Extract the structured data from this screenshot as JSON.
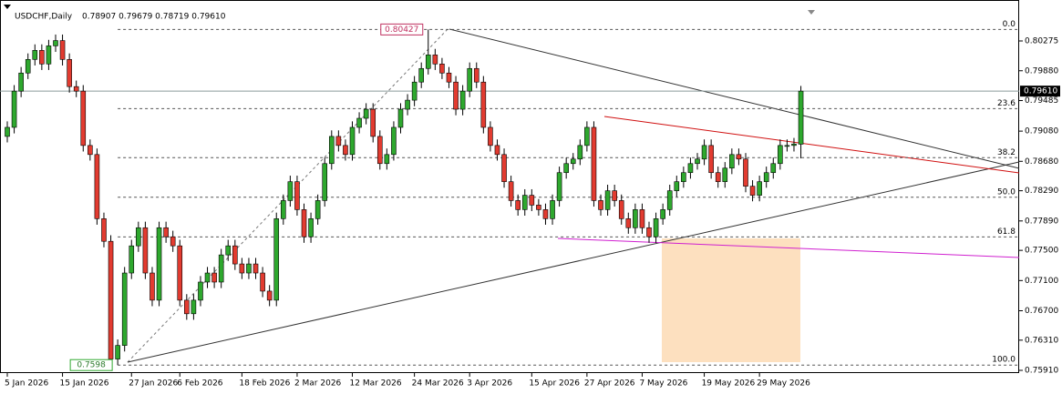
{
  "chart_data": {
    "type": "candlestick",
    "symbol": "USDCHF,Daily",
    "header_prices": "0.78907 0.79679 0.78719 0.79610",
    "bull_color": "#2ea82e",
    "bear_color": "#e23b30",
    "ylim": [
      0.75874,
      0.80697
    ],
    "yticks": [
      {
        "value": 0.80275,
        "label": "0.80275"
      },
      {
        "value": 0.7988,
        "label": "0.79880"
      },
      {
        "value": 0.79485,
        "label": "0.79485"
      },
      {
        "value": 0.7908,
        "label": "0.79080"
      },
      {
        "value": 0.7868,
        "label": "0.78680"
      },
      {
        "value": 0.7829,
        "label": "0.78290"
      },
      {
        "value": 0.7789,
        "label": "0.77890"
      },
      {
        "value": 0.775,
        "label": "0.77500"
      },
      {
        "value": 0.771,
        "label": "0.77100"
      },
      {
        "value": 0.767,
        "label": "0.76700"
      },
      {
        "value": 0.7631,
        "label": "0.76310"
      },
      {
        "value": 0.7591,
        "label": "0.75910"
      }
    ],
    "xticks": [
      {
        "value": 0,
        "label": "5 Jan 2026"
      },
      {
        "value": 8,
        "label": "15 Jan 2026"
      },
      {
        "value": 18,
        "label": "27 Jan 2026"
      },
      {
        "value": 25,
        "label": "6 Feb 2026"
      },
      {
        "value": 34,
        "label": "18 Feb 2026"
      },
      {
        "value": 42,
        "label": "2 Mar 2026"
      },
      {
        "value": 50,
        "label": "12 Mar 2026"
      },
      {
        "value": 59,
        "label": "24 Mar 2026"
      },
      {
        "value": 67,
        "label": "3 Apr 2026"
      },
      {
        "value": 76,
        "label": "15 Apr 2026"
      },
      {
        "value": 84,
        "label": "27 Apr 2026"
      },
      {
        "value": 92,
        "label": "7 May 2026"
      },
      {
        "value": 101,
        "label": "19 May 2026"
      },
      {
        "value": 109,
        "label": "29 May 2026"
      }
    ],
    "current_price": {
      "value": 0.7961,
      "label": "0.79610"
    },
    "fib_levels": [
      {
        "value": 0,
        "label": "0.0"
      },
      23.6,
      38.2,
      {
        "value": 50,
        "label": "50.0"
      },
      61.8,
      {
        "value": 100,
        "label": "100.0"
      }
    ],
    "open": [
      0.7901,
      0.7913,
      0.7961,
      0.7985,
      0.8003,
      0.8015,
      0.7997,
      0.8021,
      0.8028,
      0.8003,
      0.7967,
      0.7961,
      0.7889,
      0.7877,
      0.7792,
      0.7762,
      0.7606,
      0.7624,
      0.772,
      0.7756,
      0.778,
      0.772,
      0.7684,
      0.778,
      0.7768,
      0.7756,
      0.7684,
      0.7666,
      0.7684,
      0.7708,
      0.772,
      0.7708,
      0.7744,
      0.7756,
      0.7732,
      0.772,
      0.7732,
      0.772,
      0.7696,
      0.7684,
      0.7792,
      0.7816,
      0.7841,
      0.7804,
      0.7768,
      0.7792,
      0.7816,
      0.7865,
      0.7901,
      0.7889,
      0.7877,
      0.7913,
      0.7925,
      0.7937,
      0.7901,
      0.7865,
      0.7877,
      0.7913,
      0.7937,
      0.7949,
      0.7973,
      0.7991,
      0.8009,
      0.7997,
      0.7985,
      0.7973,
      0.7937,
      0.7961,
      0.7991,
      0.7973,
      0.7913,
      0.7889,
      0.7877,
      0.7841,
      0.7816,
      0.7804,
      0.7823,
      0.781,
      0.7804,
      0.7792,
      0.7816,
      0.7853,
      0.7865,
      0.7871,
      0.7889,
      0.7913,
      0.7816,
      0.7804,
      0.7829,
      0.7816,
      0.7792,
      0.778,
      0.7804,
      0.778,
      0.7768,
      0.7792,
      0.7804,
      0.7829,
      0.7841,
      0.7853,
      0.7865,
      0.7871,
      0.7889,
      0.7853,
      0.7841,
      0.7859,
      0.7877,
      0.7871,
      0.7835,
      0.7823,
      0.7841,
      0.7853,
      0.7865,
      0.7889,
      0.7889,
      0.78907
    ],
    "high": [
      0.7921,
      0.7969,
      0.7993,
      0.8011,
      0.8023,
      0.8023,
      0.8029,
      0.8036,
      0.8036,
      0.8011,
      0.7975,
      0.7969,
      0.7897,
      0.7885,
      0.78,
      0.777,
      0.7632,
      0.7728,
      0.7764,
      0.7788,
      0.7788,
      0.7728,
      0.7788,
      0.7788,
      0.7776,
      0.7764,
      0.7692,
      0.7692,
      0.7716,
      0.7728,
      0.7728,
      0.7752,
      0.7764,
      0.7764,
      0.774,
      0.774,
      0.774,
      0.7728,
      0.7704,
      0.78,
      0.7824,
      0.7849,
      0.7849,
      0.7812,
      0.78,
      0.7824,
      0.7873,
      0.7909,
      0.7909,
      0.7897,
      0.7921,
      0.7933,
      0.7945,
      0.7945,
      0.7909,
      0.7885,
      0.7921,
      0.7945,
      0.7957,
      0.7981,
      0.7999,
      0.80427,
      0.8017,
      0.8005,
      0.7993,
      0.7981,
      0.7969,
      0.7999,
      0.7999,
      0.7981,
      0.7921,
      0.7897,
      0.7885,
      0.7849,
      0.7824,
      0.7831,
      0.7831,
      0.7818,
      0.7812,
      0.7824,
      0.7861,
      0.7873,
      0.7879,
      0.7897,
      0.7921,
      0.7921,
      0.7824,
      0.7837,
      0.7837,
      0.7824,
      0.78,
      0.7812,
      0.7812,
      0.7788,
      0.78,
      0.7812,
      0.7837,
      0.7849,
      0.7861,
      0.7873,
      0.7879,
      0.7897,
      0.7897,
      0.7861,
      0.7867,
      0.7885,
      0.7885,
      0.7879,
      0.7843,
      0.7849,
      0.7861,
      0.7873,
      0.7897,
      0.7897,
      0.7899,
      0.79679
    ],
    "low": [
      0.7893,
      0.7905,
      0.7953,
      0.7977,
      0.7995,
      0.7989,
      0.7989,
      0.8013,
      0.7995,
      0.7959,
      0.7953,
      0.7881,
      0.7869,
      0.7784,
      0.7754,
      0.75994,
      0.7598,
      0.7616,
      0.7712,
      0.7748,
      0.7712,
      0.7676,
      0.7676,
      0.776,
      0.7748,
      0.7676,
      0.7658,
      0.7658,
      0.7676,
      0.77,
      0.77,
      0.77,
      0.7736,
      0.7724,
      0.7712,
      0.7712,
      0.7712,
      0.7688,
      0.7676,
      0.7676,
      0.7784,
      0.7808,
      0.7796,
      0.776,
      0.776,
      0.7784,
      0.7808,
      0.7857,
      0.7881,
      0.7869,
      0.7869,
      0.7905,
      0.7917,
      0.7893,
      0.7857,
      0.7857,
      0.7869,
      0.7905,
      0.7929,
      0.7941,
      0.7965,
      0.7983,
      0.7989,
      0.7977,
      0.7965,
      0.7929,
      0.7929,
      0.7953,
      0.7965,
      0.7905,
      0.7881,
      0.7869,
      0.7833,
      0.7808,
      0.7796,
      0.7796,
      0.7802,
      0.7796,
      0.7784,
      0.7784,
      0.7808,
      0.7845,
      0.7857,
      0.7863,
      0.7881,
      0.7808,
      0.7796,
      0.7796,
      0.7808,
      0.7784,
      0.7772,
      0.7772,
      0.7772,
      0.776,
      0.776,
      0.7784,
      0.7796,
      0.7821,
      0.7833,
      0.7845,
      0.7857,
      0.7863,
      0.7845,
      0.7833,
      0.7833,
      0.7851,
      0.7863,
      0.7827,
      0.7815,
      0.7815,
      0.7833,
      0.7845,
      0.7857,
      0.7881,
      0.7881,
      0.78719
    ],
    "close": [
      0.7913,
      0.7961,
      0.7985,
      0.8003,
      0.8015,
      0.7997,
      0.8021,
      0.8028,
      0.8003,
      0.7967,
      0.7961,
      0.7889,
      0.7877,
      0.7792,
      0.7762,
      0.7606,
      0.7624,
      0.772,
      0.7756,
      0.778,
      0.772,
      0.7684,
      0.778,
      0.7768,
      0.7756,
      0.7684,
      0.7666,
      0.7684,
      0.7708,
      0.772,
      0.7708,
      0.7744,
      0.7756,
      0.7732,
      0.772,
      0.7732,
      0.772,
      0.7696,
      0.7684,
      0.7792,
      0.7816,
      0.7841,
      0.7804,
      0.7768,
      0.7792,
      0.7816,
      0.7865,
      0.7901,
      0.7889,
      0.7877,
      0.7913,
      0.7925,
      0.7937,
      0.7901,
      0.7865,
      0.7877,
      0.7913,
      0.7937,
      0.7949,
      0.7973,
      0.7991,
      0.8009,
      0.7997,
      0.7985,
      0.7973,
      0.7937,
      0.7961,
      0.7991,
      0.7973,
      0.7913,
      0.7889,
      0.7877,
      0.7841,
      0.7816,
      0.7804,
      0.7823,
      0.781,
      0.7804,
      0.7792,
      0.7816,
      0.7853,
      0.7865,
      0.7871,
      0.7889,
      0.7913,
      0.7816,
      0.7804,
      0.7829,
      0.7816,
      0.7792,
      0.778,
      0.7804,
      0.778,
      0.7768,
      0.7792,
      0.7804,
      0.7829,
      0.7841,
      0.7853,
      0.7865,
      0.7871,
      0.7889,
      0.7853,
      0.7841,
      0.7859,
      0.7877,
      0.7871,
      0.7835,
      0.7823,
      0.7841,
      0.7853,
      0.7865,
      0.7889,
      0.7889,
      0.7891,
      0.7961
    ]
  }
}
